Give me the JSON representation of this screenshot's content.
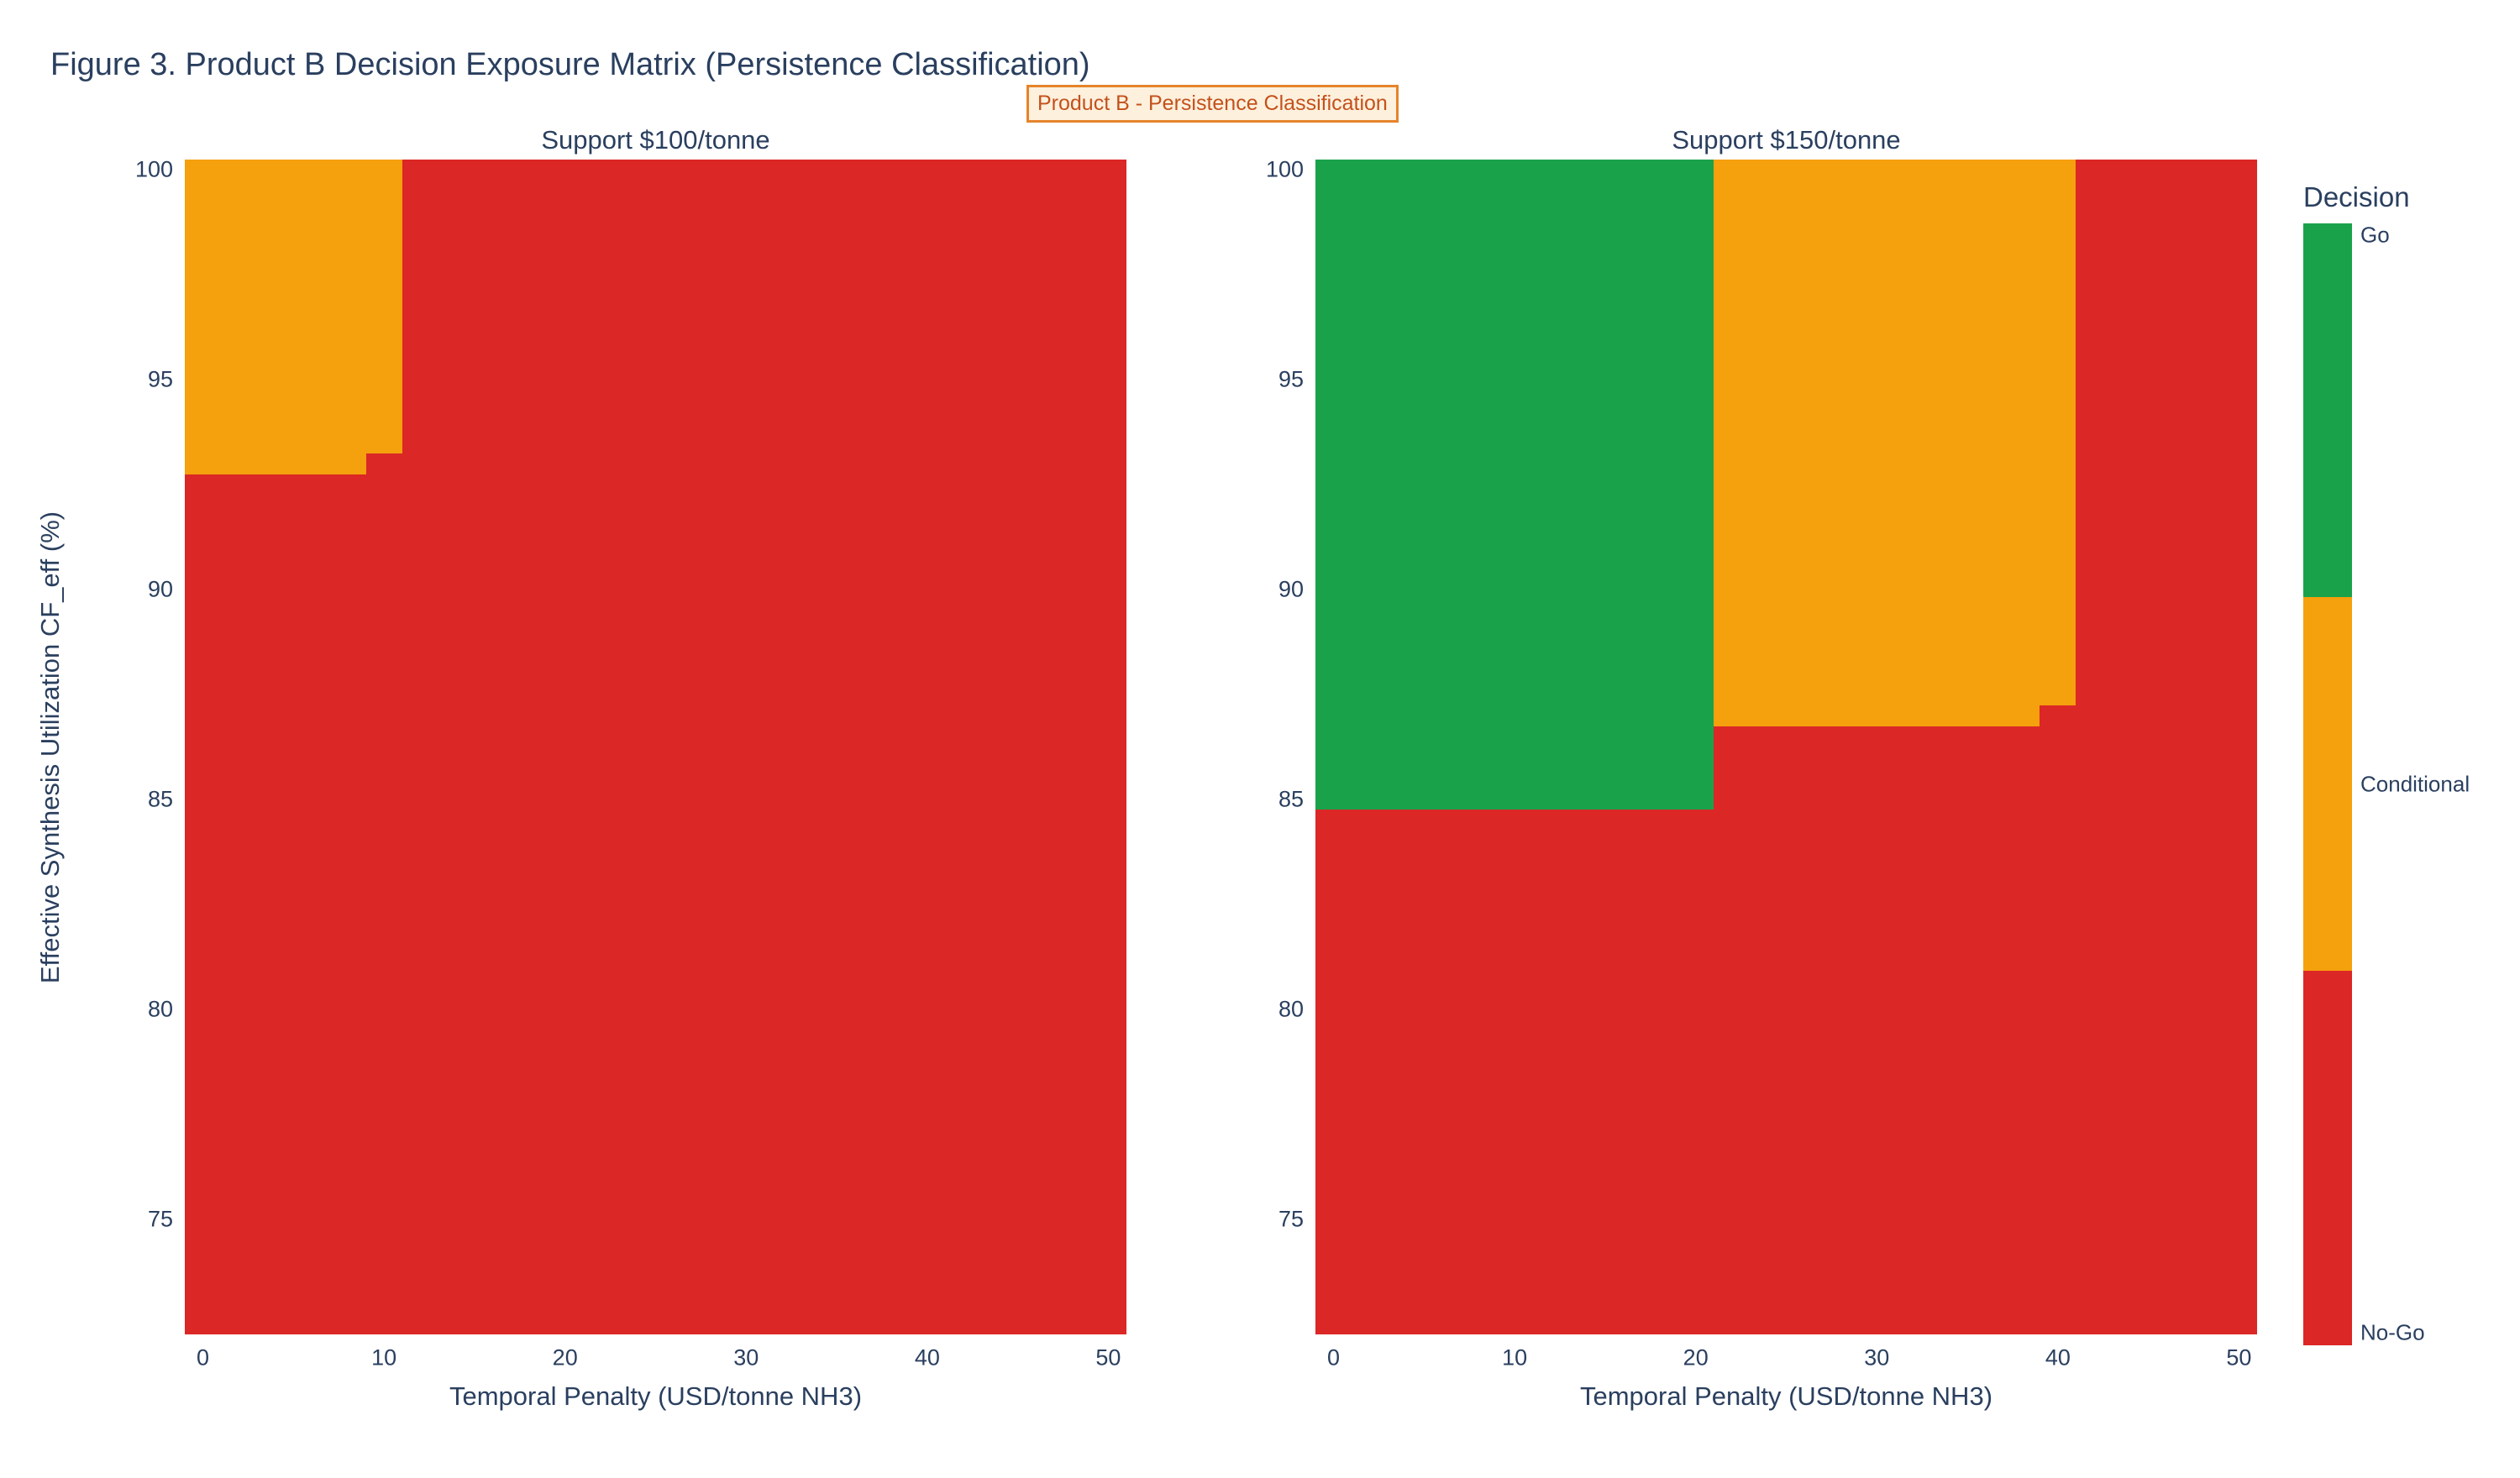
{
  "figure": {
    "title": "Figure 3. Product B Decision Exposure Matrix (Persistence Classification)",
    "badge": "Product B - Persistence Classification",
    "y_axis_title": "Effective Synthesis Utilization CF_eff (%)"
  },
  "colors": {
    "go": "#1aa24b",
    "conditional": "#f5a00d",
    "no_go": "#db2726",
    "text": "#2a3f5f",
    "badge_text": "#c4511b",
    "badge_border": "#e5842b",
    "badge_bg": "#fdf0dd"
  },
  "legend": {
    "title": "Decision",
    "entries": [
      {
        "label": "Go",
        "color_key": "go"
      },
      {
        "label": "Conditional",
        "color_key": "conditional"
      },
      {
        "label": "No-Go",
        "color_key": "no_go"
      }
    ]
  },
  "chart_data": [
    {
      "type": "heatmap",
      "title": "Support $100/tonne",
      "xlabel": "Temporal Penalty (USD/tonne NH3)",
      "ylabel": "Effective Synthesis Utilization CF_eff (%)",
      "xlim": [
        -1,
        51
      ],
      "ylim": [
        72.25,
        100.25
      ],
      "x_ticks": [
        0,
        10,
        20,
        30,
        40,
        50
      ],
      "y_ticks": [
        100,
        95,
        90,
        85,
        80,
        75
      ],
      "grid": false,
      "base_class": "No-Go",
      "regions": [
        {
          "class": "Conditional",
          "x0": -1,
          "x1": 9,
          "y0": 92.75,
          "y1": 100.25
        },
        {
          "class": "Conditional",
          "x0": 9,
          "x1": 11,
          "y0": 93.25,
          "y1": 100.25
        }
      ]
    },
    {
      "type": "heatmap",
      "title": "Support $150/tonne",
      "xlabel": "Temporal Penalty (USD/tonne NH3)",
      "ylabel": "Effective Synthesis Utilization CF_eff (%)",
      "xlim": [
        -1,
        51
      ],
      "ylim": [
        72.25,
        100.25
      ],
      "x_ticks": [
        0,
        10,
        20,
        30,
        40,
        50
      ],
      "y_ticks": [
        100,
        95,
        90,
        85,
        80,
        75
      ],
      "grid": false,
      "base_class": "No-Go",
      "regions": [
        {
          "class": "Go",
          "x0": -1,
          "x1": 21,
          "y0": 84.75,
          "y1": 100.25
        },
        {
          "class": "Conditional",
          "x0": 21,
          "x1": 39,
          "y0": 86.75,
          "y1": 100.25
        },
        {
          "class": "Conditional",
          "x0": 39,
          "x1": 41,
          "y0": 87.25,
          "y1": 100.25
        }
      ]
    }
  ]
}
